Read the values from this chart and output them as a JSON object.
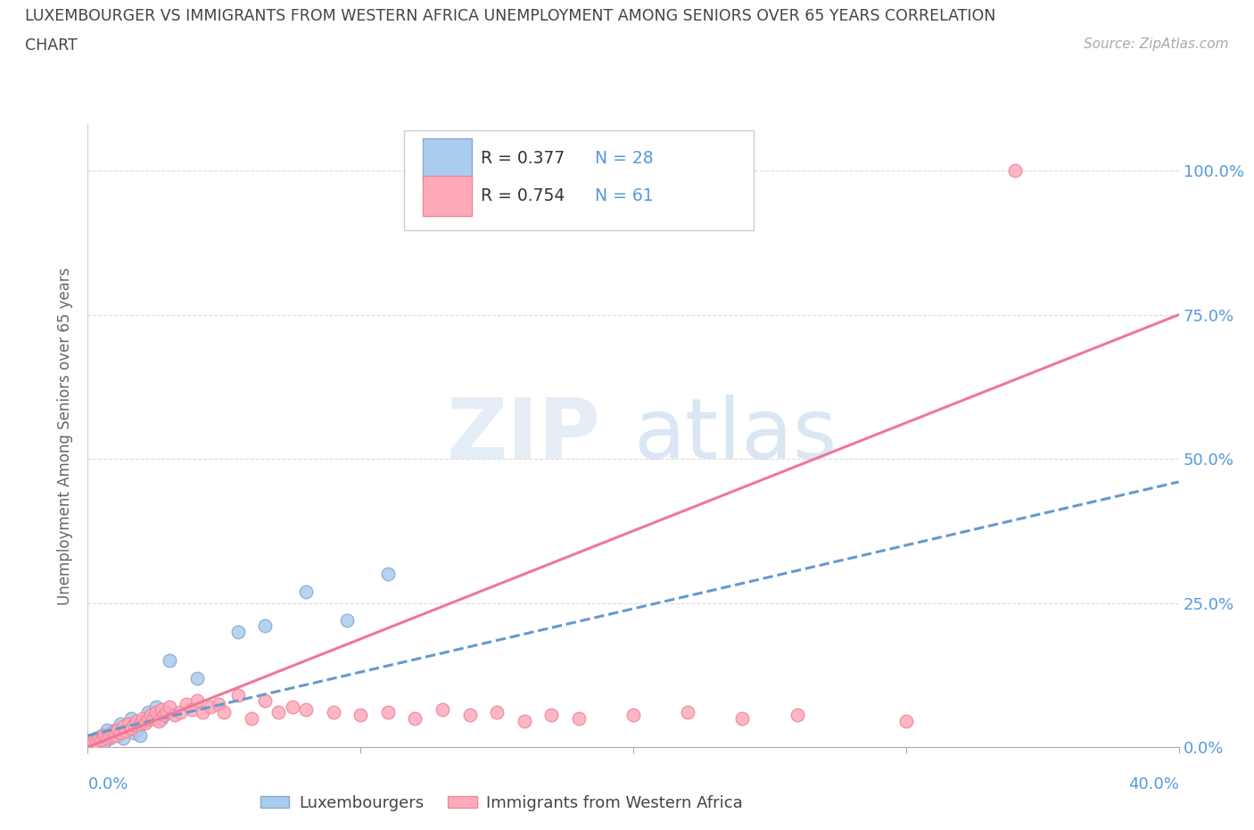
{
  "title_line1": "LUXEMBOURGER VS IMMIGRANTS FROM WESTERN AFRICA UNEMPLOYMENT AMONG SENIORS OVER 65 YEARS CORRELATION",
  "title_line2": "CHART",
  "source_text": "Source: ZipAtlas.com",
  "ylabel": "Unemployment Among Seniors over 65 years",
  "ytick_labels": [
    "0.0%",
    "25.0%",
    "50.0%",
    "75.0%",
    "100.0%"
  ],
  "ytick_values": [
    0.0,
    0.25,
    0.5,
    0.75,
    1.0
  ],
  "xlim": [
    0.0,
    0.4
  ],
  "ylim": [
    0.0,
    1.08
  ],
  "watermark_zip": "ZIP",
  "watermark_atlas": "atlas",
  "background_color": "#ffffff",
  "grid_color": "#dddddd",
  "title_color": "#444444",
  "axis_label_color": "#5599dd",
  "series": [
    {
      "name": "Luxembourgers",
      "face_color": "#aaccee",
      "edge_color": "#88aacc",
      "R": 0.377,
      "N": 28,
      "trend_color": "#6699cc",
      "trend_style": "--",
      "x": [
        0.001,
        0.003,
        0.004,
        0.005,
        0.006,
        0.007,
        0.008,
        0.009,
        0.01,
        0.011,
        0.012,
        0.013,
        0.015,
        0.016,
        0.017,
        0.018,
        0.019,
        0.02,
        0.022,
        0.025,
        0.027,
        0.03,
        0.04,
        0.055,
        0.065,
        0.08,
        0.095,
        0.11
      ],
      "y": [
        0.01,
        0.015,
        0.005,
        0.02,
        0.01,
        0.03,
        0.015,
        0.025,
        0.03,
        0.02,
        0.04,
        0.015,
        0.035,
        0.05,
        0.025,
        0.03,
        0.02,
        0.045,
        0.06,
        0.07,
        0.05,
        0.15,
        0.12,
        0.2,
        0.21,
        0.27,
        0.22,
        0.3
      ]
    },
    {
      "name": "Immigrants from Western Africa",
      "face_color": "#ffaabb",
      "edge_color": "#ee8899",
      "R": 0.754,
      "N": 61,
      "trend_color": "#ee7799",
      "trend_style": "-",
      "x": [
        0.001,
        0.002,
        0.003,
        0.004,
        0.005,
        0.006,
        0.007,
        0.008,
        0.009,
        0.01,
        0.011,
        0.012,
        0.013,
        0.014,
        0.015,
        0.016,
        0.017,
        0.018,
        0.019,
        0.02,
        0.021,
        0.022,
        0.023,
        0.024,
        0.025,
        0.026,
        0.027,
        0.028,
        0.029,
        0.03,
        0.032,
        0.034,
        0.036,
        0.038,
        0.04,
        0.042,
        0.045,
        0.048,
        0.05,
        0.055,
        0.06,
        0.065,
        0.07,
        0.075,
        0.08,
        0.09,
        0.1,
        0.11,
        0.12,
        0.13,
        0.14,
        0.15,
        0.16,
        0.17,
        0.18,
        0.2,
        0.22,
        0.24,
        0.26,
        0.3,
        0.34
      ],
      "y": [
        0.005,
        0.01,
        0.008,
        0.015,
        0.012,
        0.02,
        0.015,
        0.018,
        0.025,
        0.02,
        0.03,
        0.025,
        0.035,
        0.028,
        0.04,
        0.033,
        0.038,
        0.045,
        0.04,
        0.05,
        0.042,
        0.048,
        0.055,
        0.05,
        0.06,
        0.045,
        0.065,
        0.055,
        0.06,
        0.07,
        0.055,
        0.06,
        0.075,
        0.065,
        0.08,
        0.06,
        0.07,
        0.075,
        0.06,
        0.09,
        0.05,
        0.08,
        0.06,
        0.07,
        0.065,
        0.06,
        0.055,
        0.06,
        0.05,
        0.065,
        0.055,
        0.06,
        0.045,
        0.055,
        0.05,
        0.055,
        0.06,
        0.05,
        0.055,
        0.045,
        1.0
      ]
    }
  ]
}
